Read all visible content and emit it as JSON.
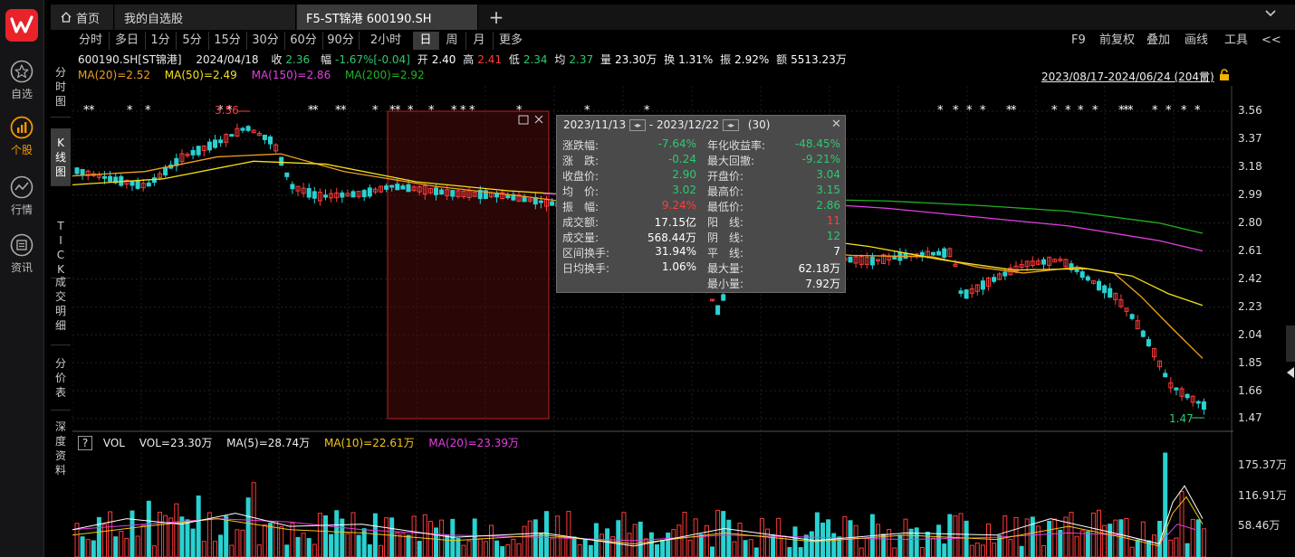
{
  "app": {
    "sidebar": [
      {
        "label": "自选",
        "icon": "star-icon"
      },
      {
        "label": "个股",
        "icon": "stock-chart-icon",
        "active": true
      },
      {
        "label": "行情",
        "icon": "trend-icon"
      },
      {
        "label": "资讯",
        "icon": "news-icon"
      }
    ],
    "brand_color": "#e8232a",
    "accent_color": "#f39800"
  },
  "tabs": [
    {
      "label": "首页",
      "icon": "home-icon"
    },
    {
      "label": "我的自选股"
    },
    {
      "label": "F5-ST锦港 600190.SH",
      "active": true
    }
  ],
  "side_tabs": [
    {
      "label": "分时图"
    },
    {
      "label": "K线图",
      "active": true
    },
    {
      "label": "TICK"
    },
    {
      "label": "成交明细"
    },
    {
      "label": "分价表"
    },
    {
      "label": "深度资料"
    }
  ],
  "periods": [
    {
      "label": "分时"
    },
    {
      "label": "多日"
    },
    {
      "label": "1分"
    },
    {
      "label": "5分"
    },
    {
      "label": "15分"
    },
    {
      "label": "30分"
    },
    {
      "label": "60分"
    },
    {
      "label": "90分"
    },
    {
      "label": "2小时"
    },
    {
      "label": "日",
      "active": true
    },
    {
      "label": "周"
    },
    {
      "label": "月"
    },
    {
      "label": "更多"
    }
  ],
  "right_tools": [
    {
      "label": "F9"
    },
    {
      "label": "前复权"
    },
    {
      "label": "叠加"
    },
    {
      "label": "画线"
    },
    {
      "label": "工具"
    },
    {
      "label": "<<"
    }
  ],
  "quote": {
    "code": "600190.SH[ST锦港]",
    "date": "2024/04/18",
    "close_label": "收",
    "close": "2.36",
    "change_label": "幅",
    "change": "-1.67%[-0.04]",
    "open_label": "开",
    "open": "2.40",
    "high_label": "高",
    "high": "2.41",
    "low_label": "低",
    "low": "2.34",
    "avg_label": "均",
    "avg": "2.37",
    "vol_label": "量",
    "vol": "23.30万",
    "turnover_label": "换",
    "turnover": "1.31%",
    "amp_label": "振",
    "amp": "2.92%",
    "amount_label": "额",
    "amount": "5513.23万"
  },
  "ma": [
    {
      "label": "MA(20)=2.52",
      "color": "#f0a020"
    },
    {
      "label": "MA(50)=2.49",
      "color": "#f5e11a"
    },
    {
      "label": "MA(150)=2.86",
      "color": "#e33fe3"
    },
    {
      "label": "MA(200)=2.92",
      "color": "#23b123"
    }
  ],
  "date_range": "2023/08/17-2024/06/24 (204日)",
  "price_axis": [
    "3.56",
    "3.37",
    "3.18",
    "2.99",
    "2.80",
    "2.61",
    "2.42",
    "2.23",
    "2.04",
    "1.85",
    "1.66",
    "1.47"
  ],
  "annotations": {
    "high": "3.56",
    "low": "1.47"
  },
  "volume": {
    "help": "?",
    "title": "VOL",
    "items": [
      {
        "label": "VOL=23.30万",
        "color": "#eeeeee"
      },
      {
        "label": "MA(5)=28.74万",
        "color": "#eeeeee"
      },
      {
        "label": "MA(10)=22.61万",
        "color": "#f5c51a"
      },
      {
        "label": "MA(20)=23.39万",
        "color": "#e33fe3"
      }
    ],
    "axis": [
      "175.37万",
      "116.91万",
      "58.46万"
    ]
  },
  "popup": {
    "date_from": "2023/11/13",
    "date_sep": "-",
    "date_to": "2023/12/22",
    "count": "(30)",
    "left": [
      {
        "k": "涨跌幅:",
        "v": "-7.64%",
        "c": "green"
      },
      {
        "k": "涨　跌:",
        "v": "-0.24",
        "c": "green"
      },
      {
        "k": "收盘价:",
        "v": "2.90",
        "c": "green"
      },
      {
        "k": "均　价:",
        "v": "3.02",
        "c": "green"
      },
      {
        "k": "振　幅:",
        "v": "9.24%",
        "c": "red"
      },
      {
        "k": "成交额:",
        "v": "17.15亿",
        "c": "white"
      },
      {
        "k": "成交量:",
        "v": "568.44万",
        "c": "white"
      },
      {
        "k": "区间换手:",
        "v": "31.94%",
        "c": "white"
      },
      {
        "k": "日均换手:",
        "v": "1.06%",
        "c": "white"
      }
    ],
    "right": [
      {
        "k": "年化收益率:",
        "v": "-48.45%",
        "c": "green"
      },
      {
        "k": "最大回撤:",
        "v": "-9.21%",
        "c": "green"
      },
      {
        "k": "开盘价:",
        "v": "3.04",
        "c": "green"
      },
      {
        "k": "最高价:",
        "v": "3.15",
        "c": "green"
      },
      {
        "k": "最低价:",
        "v": "2.86",
        "c": "green"
      },
      {
        "k": "阳　线:",
        "v": "11",
        "c": "red"
      },
      {
        "k": "阴　线:",
        "v": "12",
        "c": "green"
      },
      {
        "k": "平　线:",
        "v": "7",
        "c": "white"
      },
      {
        "k": "最大量:",
        "v": "62.18万",
        "c": "white"
      },
      {
        "k": "最小量:",
        "v": "7.92万",
        "c": "white"
      }
    ]
  },
  "chart_data": {
    "type": "candlestick",
    "ylim": [
      1.4,
      3.62
    ],
    "y_ticks": [
      3.56,
      3.37,
      3.18,
      2.99,
      2.8,
      2.61,
      2.42,
      2.23,
      2.04,
      1.85,
      1.66,
      1.47
    ],
    "ma_series": [
      {
        "name": "MA(20)",
        "color": "#f0a020"
      },
      {
        "name": "MA(50)",
        "color": "#f5e11a"
      },
      {
        "name": "MA(150)",
        "color": "#e33fe3"
      },
      {
        "name": "MA(200)",
        "color": "#23b123"
      }
    ],
    "volume_ylim": [
      0,
      200
    ],
    "volume_ticks": [
      175.37,
      116.91,
      58.46
    ]
  }
}
